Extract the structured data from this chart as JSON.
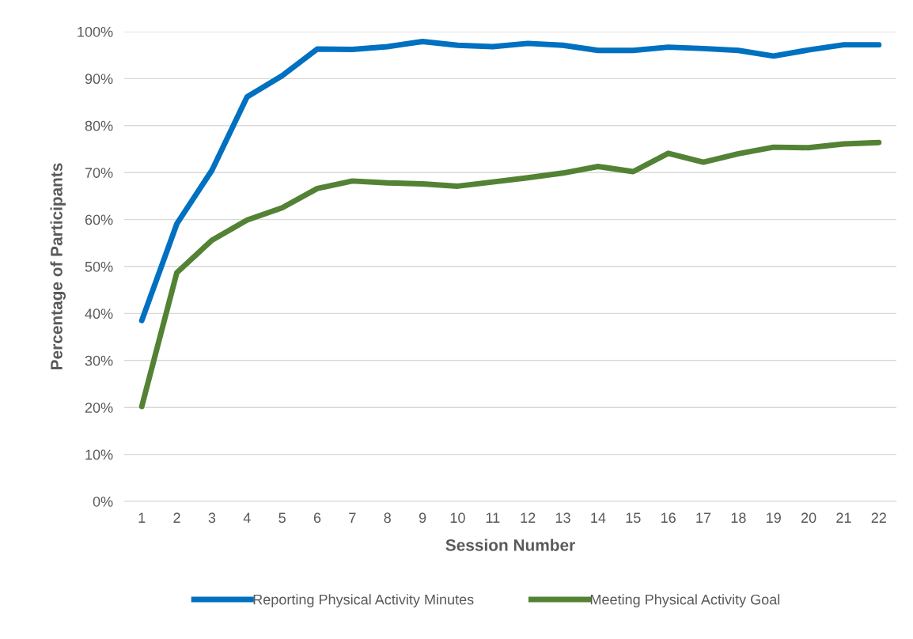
{
  "chart_data": {
    "type": "line",
    "xlabel": "Session Number",
    "ylabel": "Percentage of Participants",
    "categories": [
      "1",
      "2",
      "3",
      "4",
      "5",
      "6",
      "7",
      "8",
      "9",
      "10",
      "11",
      "12",
      "13",
      "14",
      "15",
      "16",
      "17",
      "18",
      "19",
      "20",
      "21",
      "22"
    ],
    "series": [
      {
        "name": "Reporting Physical Activity Minutes",
        "color": "#0070c0",
        "line_style": "solid",
        "values": [
          38.5,
          59.1,
          70.5,
          86.1,
          90.6,
          96.3,
          96.2,
          96.8,
          97.9,
          97.1,
          96.8,
          97.5,
          97.1,
          96.0,
          96.0,
          96.7,
          96.4,
          96.0,
          94.8,
          96.1,
          97.2,
          97.2
        ]
      },
      {
        "name": "Meeting Physical Activity Goal",
        "color": "#548235",
        "line_style": "solid",
        "values": [
          20.2,
          48.7,
          55.6,
          59.9,
          62.5,
          66.6,
          68.2,
          67.8,
          67.6,
          67.1,
          68.0,
          68.9,
          69.9,
          71.3,
          70.2,
          74.1,
          72.2,
          74.0,
          75.4,
          75.3,
          76.1,
          76.4
        ]
      }
    ],
    "ylim": [
      0,
      100
    ],
    "yticks": [
      {
        "value": 0,
        "label": "0%"
      },
      {
        "value": 10,
        "label": "10%"
      },
      {
        "value": 20,
        "label": "20%"
      },
      {
        "value": 30,
        "label": "30%"
      },
      {
        "value": 40,
        "label": "40%"
      },
      {
        "value": 50,
        "label": "50%"
      },
      {
        "value": 60,
        "label": "60%"
      },
      {
        "value": 70,
        "label": "70%"
      },
      {
        "value": 80,
        "label": "80%"
      },
      {
        "value": 90,
        "label": "90%"
      },
      {
        "value": 100,
        "label": "100%"
      }
    ],
    "grid": "y",
    "legend": "bottom",
    "marker": "none"
  }
}
